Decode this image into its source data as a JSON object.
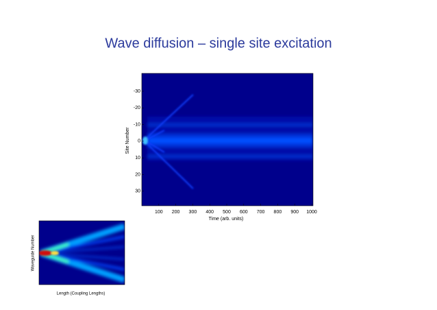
{
  "slide": {
    "title": "Wave diffusion – single site excitation",
    "main_plot": {
      "xlabel": "Time (arb. units)",
      "ylabel": "Site Number",
      "xticks": [
        100,
        200,
        300,
        400,
        500,
        600,
        700,
        800,
        900,
        1000
      ],
      "yticks": [
        "-30",
        "-20",
        "-10",
        "0",
        "10",
        "20",
        "30"
      ]
    },
    "inset_plot": {
      "xlabel": "Length (Coupling Lengths)",
      "ylabel": "Waveguide Number"
    }
  }
}
